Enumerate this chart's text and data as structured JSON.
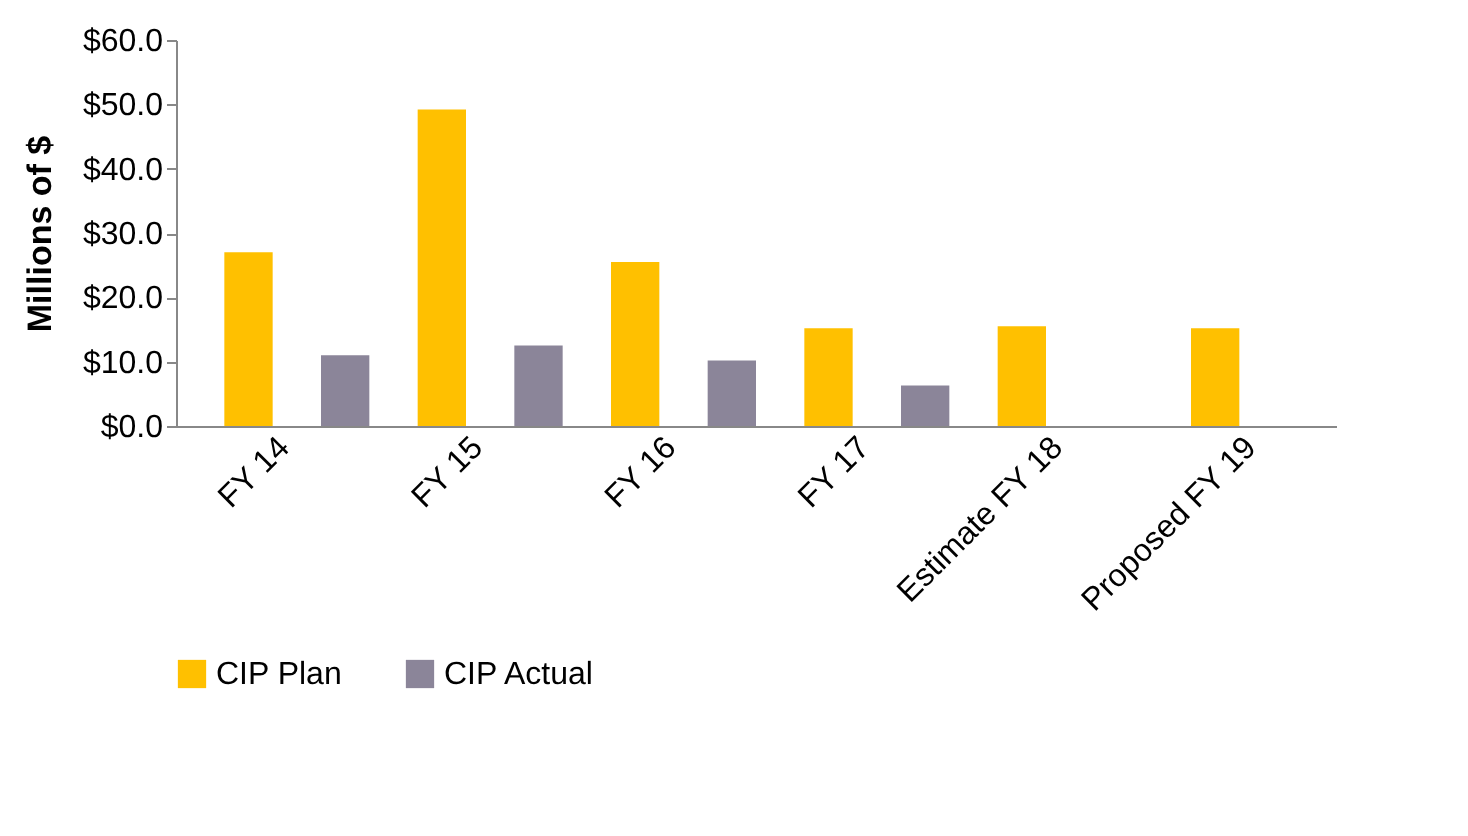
{
  "chart_data": {
    "type": "bar",
    "ylabel": "Millions of $",
    "categories": [
      "FY 14",
      "FY 15",
      "FY 16",
      "FY 17",
      "Estimate FY 18",
      "Proposed FY 19"
    ],
    "series": [
      {
        "name": "CIP Plan",
        "color": "#ffc000",
        "values": [
          27.0,
          49.2,
          25.5,
          15.2,
          15.5,
          15.2
        ]
      },
      {
        "name": "CIP Actual",
        "color": "#8b8599",
        "values": [
          11.0,
          12.5,
          10.2,
          6.3,
          null,
          null
        ]
      }
    ],
    "ylim": [
      0,
      60
    ],
    "yticks": [
      {
        "value": 0,
        "label": "$0.0"
      },
      {
        "value": 10,
        "label": "$10.0"
      },
      {
        "value": 20,
        "label": "$20.0"
      },
      {
        "value": 30,
        "label": "$30.0"
      },
      {
        "value": 40,
        "label": "$40.0"
      },
      {
        "value": 50,
        "label": "$50.0"
      },
      {
        "value": 60,
        "label": "$60.0"
      }
    ],
    "grid": false,
    "legend": "bottom"
  }
}
